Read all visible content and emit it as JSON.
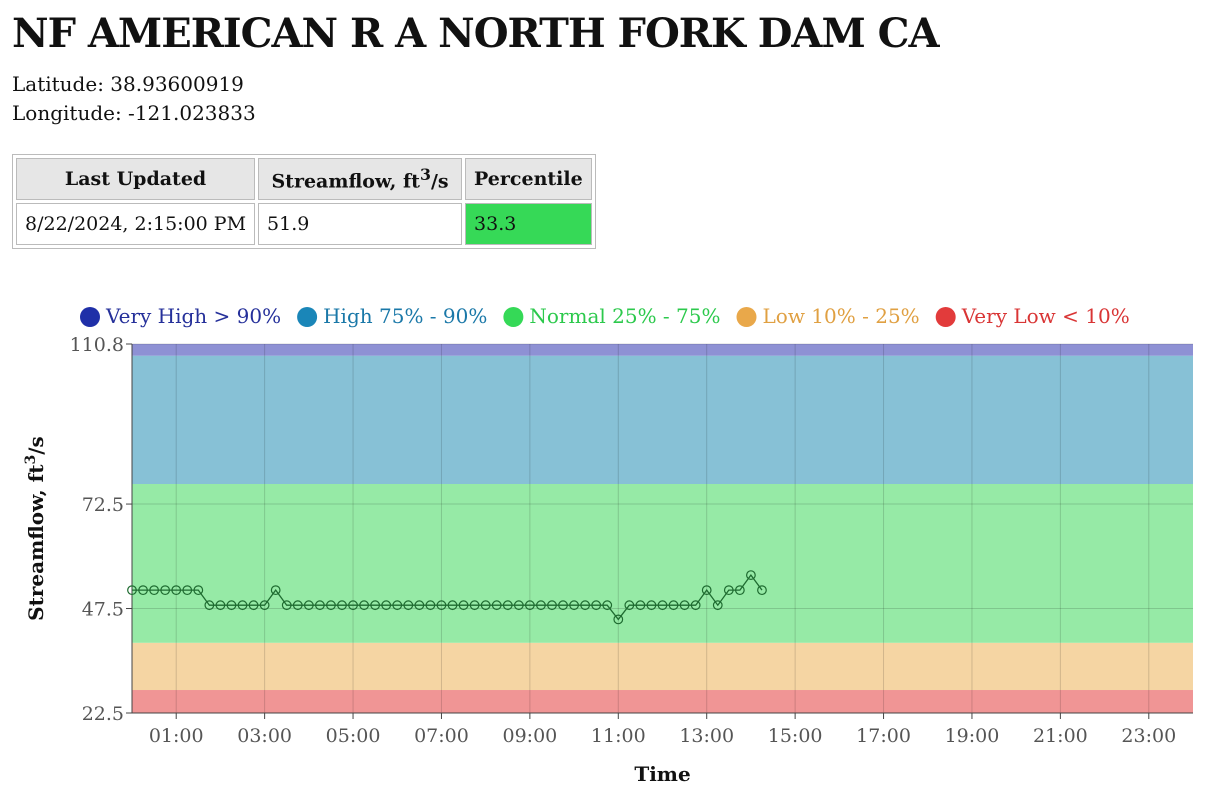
{
  "station": {
    "title": "NF AMERICAN R A NORTH FORK DAM CA",
    "latitude_label": "Latitude: 38.93600919",
    "longitude_label": "Longitude: -121.023833"
  },
  "table": {
    "headers": {
      "updated": "Last Updated",
      "flow_main": "Streamflow, ft",
      "flow_sup": "3",
      "flow_tail": "/s",
      "percentile": "Percentile"
    },
    "row": {
      "updated": "8/22/2024, 2:15:00 PM",
      "flow": "51.9",
      "percentile": "33.3"
    },
    "percentile_color": "#36d957"
  },
  "legend": [
    {
      "label": "Very High > 90%",
      "color": "#1f2fa8",
      "text_color": "#25309a"
    },
    {
      "label": "High 75% - 90%",
      "color": "#1a86b8",
      "text_color": "#1a78a8"
    },
    {
      "label": "Normal 25% - 75%",
      "color": "#35d957",
      "text_color": "#2cc94c"
    },
    {
      "label": "Low 10% - 25%",
      "color": "#e9a84a",
      "text_color": "#e0a042"
    },
    {
      "label": "Very Low < 10%",
      "color": "#e23b3b",
      "text_color": "#d93535"
    }
  ],
  "chart_data": {
    "type": "line",
    "xlabel": "Time",
    "ylabel_main": "Streamflow, ft",
    "ylabel_sup": "3",
    "ylabel_tail": "/s",
    "xlim_hours": [
      0,
      24
    ],
    "ylim": [
      22.5,
      110.8
    ],
    "y_ticks": [
      22.5,
      47.5,
      72.5,
      110.8
    ],
    "x_ticks_hours": [
      1,
      3,
      5,
      7,
      9,
      11,
      13,
      15,
      17,
      19,
      21,
      23
    ],
    "x_tick_labels": [
      "01:00",
      "03:00",
      "05:00",
      "07:00",
      "09:00",
      "11:00",
      "13:00",
      "15:00",
      "17:00",
      "19:00",
      "21:00",
      "23:00"
    ],
    "bands": [
      {
        "from": 22.5,
        "to": 28,
        "color": "#f09595"
      },
      {
        "from": 28,
        "to": 39.3,
        "color": "#f5d5a3"
      },
      {
        "from": 39.3,
        "to": 77.3,
        "color": "#96eaa6"
      },
      {
        "from": 77.3,
        "to": 108,
        "color": "#87c1d6"
      },
      {
        "from": 108,
        "to": 110.8,
        "color": "#8e91d4"
      }
    ],
    "line_color": "#1e6b30",
    "x": [
      "00:00",
      "00:15",
      "00:30",
      "00:45",
      "01:00",
      "01:15",
      "01:30",
      "01:45",
      "02:00",
      "02:15",
      "02:30",
      "02:45",
      "03:00",
      "03:15",
      "03:30",
      "03:45",
      "04:00",
      "04:15",
      "04:30",
      "04:45",
      "05:00",
      "05:15",
      "05:30",
      "05:45",
      "06:00",
      "06:15",
      "06:30",
      "06:45",
      "07:00",
      "07:15",
      "07:30",
      "07:45",
      "08:00",
      "08:15",
      "08:30",
      "08:45",
      "09:00",
      "09:15",
      "09:30",
      "09:45",
      "10:00",
      "10:15",
      "10:30",
      "10:45",
      "11:00",
      "11:15",
      "11:30",
      "11:45",
      "12:00",
      "12:15",
      "12:30",
      "12:45",
      "13:00",
      "13:15",
      "13:30",
      "13:45",
      "14:00",
      "14:15"
    ],
    "values": [
      51.9,
      51.9,
      51.9,
      51.9,
      51.9,
      51.9,
      51.9,
      48.3,
      48.3,
      48.3,
      48.3,
      48.3,
      48.3,
      51.9,
      48.3,
      48.3,
      48.3,
      48.3,
      48.3,
      48.3,
      48.3,
      48.3,
      48.3,
      48.3,
      48.3,
      48.3,
      48.3,
      48.3,
      48.3,
      48.3,
      48.3,
      48.3,
      48.3,
      48.3,
      48.3,
      48.3,
      48.3,
      48.3,
      48.3,
      48.3,
      48.3,
      48.3,
      48.3,
      48.3,
      44.9,
      48.3,
      48.3,
      48.3,
      48.3,
      48.3,
      48.3,
      48.3,
      51.9,
      48.3,
      51.9,
      51.9,
      55.5,
      51.9
    ]
  }
}
